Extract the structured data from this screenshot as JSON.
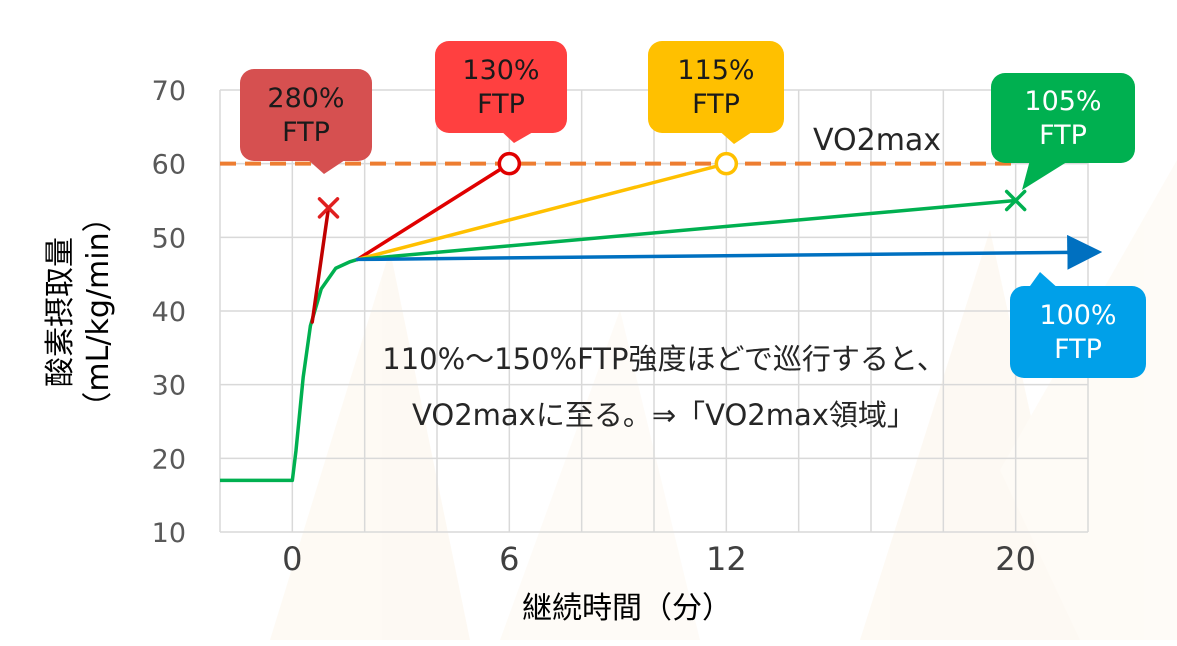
{
  "chart_data": {
    "type": "line",
    "xlabel": "継続時間（分）",
    "ylabel_main": "酸素摂取量",
    "ylabel_unit": "（mL/kg/min）",
    "xticks": [
      0,
      6,
      12,
      20
    ],
    "yticks": [
      10,
      20,
      30,
      40,
      50,
      60,
      70
    ],
    "xlim": [
      -2,
      22
    ],
    "ylim": [
      10,
      70
    ],
    "grid": true,
    "vo2max": {
      "label": "VO2max",
      "value": 60,
      "color": "#ED7D31"
    },
    "baseline": {
      "color": "#00B050",
      "points": [
        [
          -2,
          17
        ],
        [
          0,
          17
        ],
        [
          0.1,
          21
        ],
        [
          0.3,
          31
        ],
        [
          0.5,
          38
        ],
        [
          0.8,
          43
        ],
        [
          1.2,
          45.8
        ],
        [
          1.6,
          46.7
        ],
        [
          1.8,
          47
        ]
      ]
    },
    "series": [
      {
        "callout": [
          "280%",
          "FTP"
        ],
        "color": "#C00000",
        "fill": "#D65050",
        "from": [
          0.55,
          38.5
        ],
        "to": [
          1,
          54
        ],
        "end": "x"
      },
      {
        "callout": [
          "130%",
          "FTP"
        ],
        "color": "#E00000",
        "fill": "#FF4040",
        "from": [
          1.8,
          47
        ],
        "to": [
          6,
          60
        ],
        "end": "circle"
      },
      {
        "callout": [
          "115%",
          "FTP"
        ],
        "color": "#FFC000",
        "fill": "#FFC000",
        "from": [
          1.8,
          47
        ],
        "to": [
          12,
          60
        ],
        "end": "circle"
      },
      {
        "callout": [
          "105%",
          "FTP"
        ],
        "color": "#00B050",
        "fill": "#00B050",
        "from": [
          1.8,
          47
        ],
        "to": [
          20,
          55
        ],
        "end": "x"
      },
      {
        "callout": [
          "100%",
          "FTP"
        ],
        "color": "#0070C0",
        "fill": "#00A0E9",
        "from": [
          1.8,
          47
        ],
        "to": [
          22.2,
          48
        ],
        "end": "arrow"
      }
    ],
    "annotation": [
      "110%～150%FTP強度ほどで巡行すると、",
      "VO2maxに至る。⇒「VO2max領域」"
    ]
  }
}
